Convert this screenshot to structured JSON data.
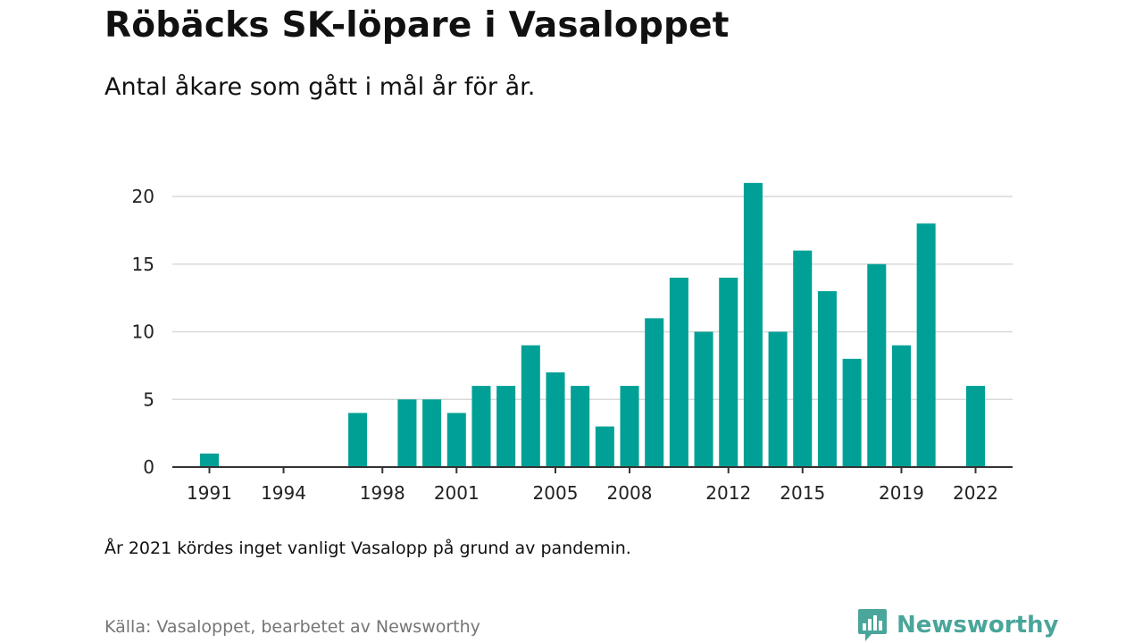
{
  "header": {
    "title": "Röbäcks SK-löpare i Vasaloppet",
    "subtitle": "Antal åkare som gått i mål år för år."
  },
  "note": "År 2021 kördes inget vanligt Vasalopp på grund av pandemin.",
  "source": "Källa: Vasaloppet, bearbetet av Newsworthy",
  "brand": {
    "name": "Newsworthy",
    "color": "#4aa59a",
    "icon": "newsworthy-logo-icon"
  },
  "chart_data": {
    "type": "bar",
    "x": [
      1991,
      1992,
      1993,
      1994,
      1995,
      1996,
      1997,
      1998,
      1999,
      2000,
      2001,
      2002,
      2003,
      2004,
      2005,
      2006,
      2007,
      2008,
      2009,
      2010,
      2011,
      2012,
      2013,
      2014,
      2015,
      2016,
      2017,
      2018,
      2019,
      2020,
      2021,
      2022
    ],
    "values": [
      1,
      0,
      0,
      0,
      0,
      0,
      4,
      0,
      5,
      5,
      4,
      6,
      6,
      9,
      7,
      6,
      3,
      6,
      11,
      14,
      10,
      14,
      21,
      10,
      16,
      13,
      8,
      15,
      9,
      18,
      0,
      6
    ],
    "xticks": [
      1991,
      1994,
      1998,
      2001,
      2005,
      2008,
      2012,
      2015,
      2019,
      2022
    ],
    "yticks": [
      0,
      5,
      10,
      15,
      20
    ],
    "ylim": [
      0,
      21
    ],
    "xlim": [
      1989.5,
      2023.5
    ],
    "xlabel": "",
    "ylabel": "",
    "bar_color": "#00a096",
    "grid": true
  }
}
